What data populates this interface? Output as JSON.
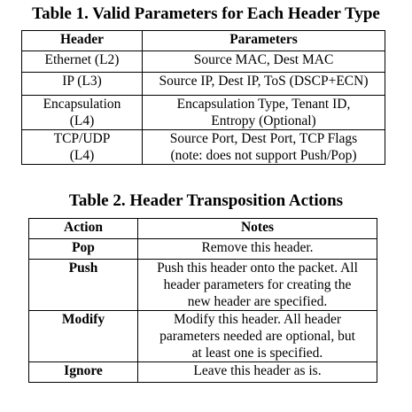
{
  "table1": {
    "caption": "Table 1. Valid Parameters for Each Header Type",
    "headers": [
      "Header",
      "Parameters"
    ],
    "rows": [
      {
        "header": [
          "Ethernet (L2)"
        ],
        "params": [
          "Source MAC, Dest MAC"
        ]
      },
      {
        "header": [
          "IP (L3)"
        ],
        "params": [
          "Source IP, Dest IP, ToS (DSCP+ECN)"
        ]
      },
      {
        "header": [
          "Encapsulation",
          "(L4)"
        ],
        "params": [
          "Encapsulation Type,  Tenant ID,",
          "Entropy (Optional)"
        ]
      },
      {
        "header": [
          "TCP/UDP",
          "(L4)"
        ],
        "params": [
          "Source Port, Dest Port, TCP Flags",
          "(note: does not support Push/Pop)"
        ]
      }
    ]
  },
  "table2": {
    "caption": "Table 2. Header Transposition Actions",
    "headers": [
      "Action",
      "Notes"
    ],
    "rows": [
      {
        "action": "Pop",
        "notes": [
          "Remove this header."
        ]
      },
      {
        "action": "Push",
        "notes": [
          "Push this header onto the packet. All",
          "header parameters for creating the",
          "new header are specified."
        ]
      },
      {
        "action": "Modify",
        "notes": [
          "Modify this header. All header",
          "parameters needed are optional, but",
          "at least one is specified."
        ]
      },
      {
        "action": "Ignore",
        "notes": [
          "Leave this header as is."
        ]
      }
    ]
  }
}
